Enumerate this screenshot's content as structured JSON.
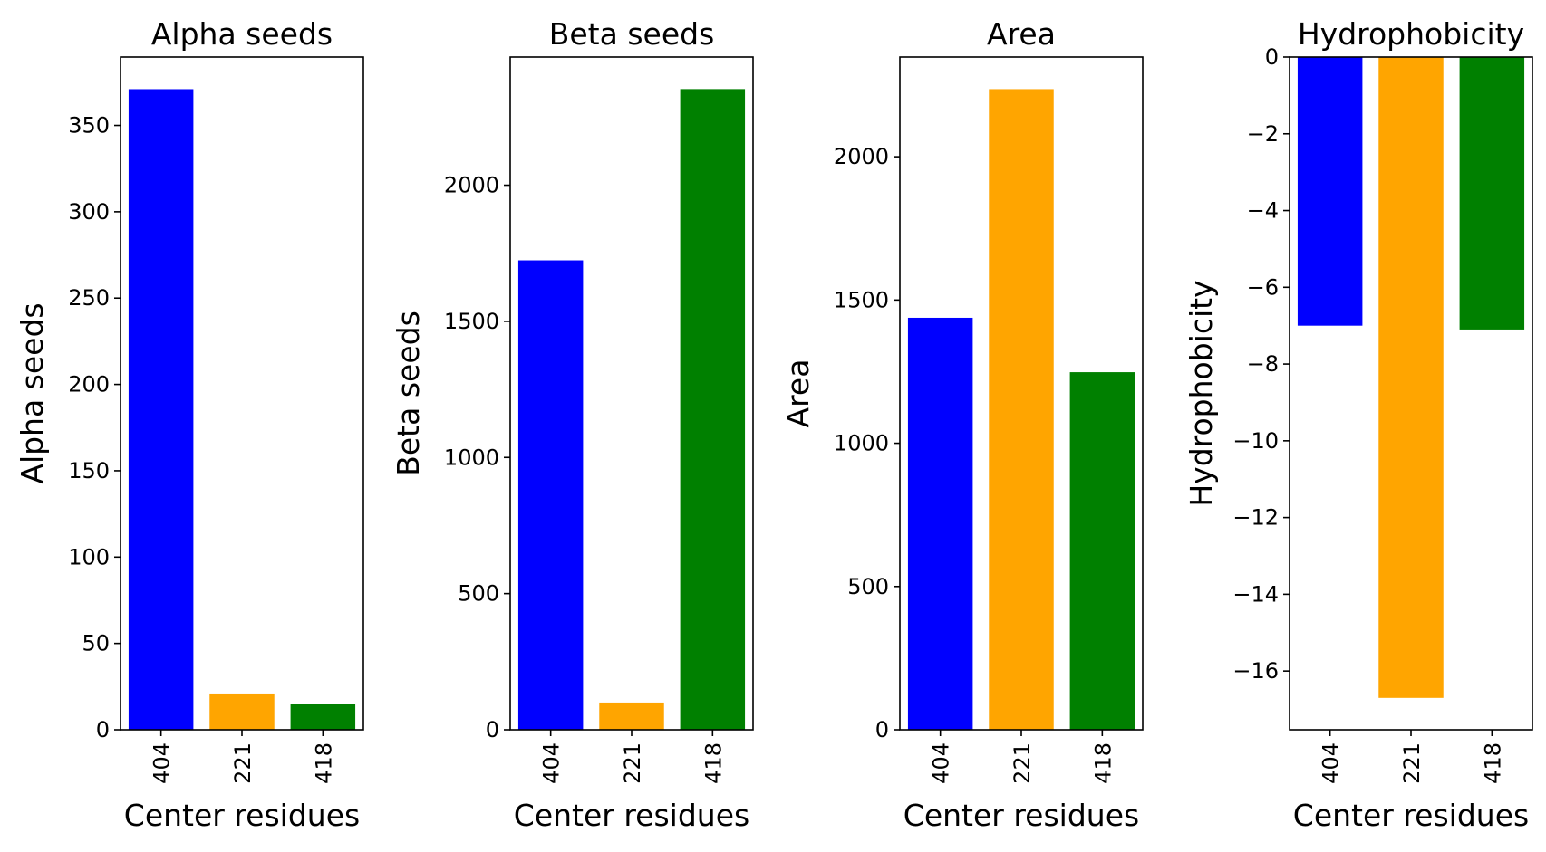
{
  "chart_data": [
    {
      "type": "bar",
      "title": "Alpha seeds",
      "xlabel": "Center residues",
      "ylabel": "Alpha seeds",
      "categories": [
        "404",
        "221",
        "418"
      ],
      "values": [
        371,
        21,
        15
      ],
      "colors": [
        "#0000ff",
        "#ffa500",
        "#008000"
      ],
      "ylim": [
        0,
        389.6
      ],
      "yticks": [
        0,
        50,
        100,
        150,
        200,
        250,
        300,
        350
      ],
      "ytick_labels": [
        "0",
        "50",
        "100",
        "150",
        "200",
        "250",
        "300",
        "350"
      ],
      "grid": false
    },
    {
      "type": "bar",
      "title": "Beta seeds",
      "xlabel": "Center residues",
      "ylabel": "Beta seeds",
      "categories": [
        "404",
        "221",
        "418"
      ],
      "values": [
        1724,
        100,
        2353
      ],
      "colors": [
        "#0000ff",
        "#ffa500",
        "#008000"
      ],
      "ylim": [
        0,
        2470.6
      ],
      "yticks": [
        0,
        500,
        1000,
        1500,
        2000
      ],
      "ytick_labels": [
        "0",
        "500",
        "1000",
        "1500",
        "2000"
      ],
      "grid": false
    },
    {
      "type": "bar",
      "title": "Area",
      "xlabel": "Center residues",
      "ylabel": "Area",
      "categories": [
        "404",
        "221",
        "418"
      ],
      "values": [
        1438,
        2236,
        1248
      ],
      "colors": [
        "#0000ff",
        "#ffa500",
        "#008000"
      ],
      "ylim": [
        0,
        2348
      ],
      "yticks": [
        0,
        500,
        1000,
        1500,
        2000
      ],
      "ytick_labels": [
        "0",
        "500",
        "1000",
        "1500",
        "2000"
      ],
      "grid": false
    },
    {
      "type": "bar",
      "title": "Hydrophobicity",
      "xlabel": "Center residues",
      "ylabel": "Hydrophobicity",
      "categories": [
        "404",
        "221",
        "418"
      ],
      "values": [
        -7.0,
        -16.7,
        -7.1
      ],
      "colors": [
        "#0000ff",
        "#ffa500",
        "#008000"
      ],
      "ylim": [
        -17.53,
        0
      ],
      "yticks": [
        0,
        -2,
        -4,
        -6,
        -8,
        -10,
        -12,
        -14,
        -16
      ],
      "ytick_labels": [
        "0",
        "−2",
        "−4",
        "−6",
        "−8",
        "−10",
        "−12",
        "−14",
        "−16"
      ],
      "grid": false
    }
  ]
}
